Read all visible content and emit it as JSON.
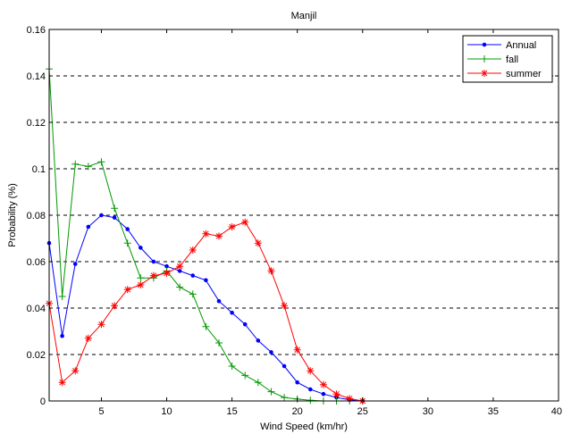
{
  "chart_data": {
    "type": "line",
    "title": "Manjil",
    "xlabel": "Wind Speed (km/hr)",
    "ylabel": "Probability (%)",
    "xlim": [
      1,
      40
    ],
    "ylim": [
      0,
      0.16
    ],
    "xticks": [
      5,
      10,
      15,
      20,
      25,
      30,
      35,
      40
    ],
    "xtick_labels": [
      "5",
      "10",
      "15",
      "20",
      "25",
      "30",
      "35",
      "40"
    ],
    "yticks": [
      0,
      0.02,
      0.04,
      0.06,
      0.08,
      0.1,
      0.12,
      0.14,
      0.16
    ],
    "ytick_labels": [
      "0",
      "0.02",
      "0.04",
      "0.06",
      "0.08",
      "0.1",
      "0.12",
      "0.14",
      "0.16"
    ],
    "grid": "horizontal dashed",
    "legend_position": "top-right",
    "series": [
      {
        "name": "Annual",
        "color": "#0000ff",
        "marker": "dot",
        "x": [
          1,
          2,
          3,
          4,
          5,
          6,
          7,
          8,
          9,
          10,
          11,
          12,
          13,
          14,
          15,
          16,
          17,
          18,
          19,
          20,
          21,
          22,
          23,
          24,
          25
        ],
        "y": [
          0.068,
          0.028,
          0.059,
          0.075,
          0.08,
          0.079,
          0.074,
          0.066,
          0.06,
          0.058,
          0.056,
          0.054,
          0.052,
          0.043,
          0.038,
          0.033,
          0.026,
          0.021,
          0.015,
          0.008,
          0.005,
          0.003,
          0.0015,
          0.0005,
          0.0
        ]
      },
      {
        "name": "fall",
        "color": "#009900",
        "marker": "plus",
        "x": [
          1,
          2,
          3,
          4,
          5,
          6,
          7,
          8,
          9,
          10,
          11,
          12,
          13,
          14,
          15,
          16,
          17,
          18,
          19,
          20,
          21,
          22,
          23,
          24,
          25
        ],
        "y": [
          0.143,
          0.045,
          0.102,
          0.101,
          0.103,
          0.083,
          0.068,
          0.053,
          0.053,
          0.056,
          0.049,
          0.046,
          0.032,
          0.025,
          0.015,
          0.011,
          0.008,
          0.004,
          0.0015,
          0.0008,
          0.0003,
          0.0,
          0.0,
          0.0,
          0.0
        ]
      },
      {
        "name": "summer",
        "color": "#ff0000",
        "marker": "star",
        "x": [
          1,
          2,
          3,
          4,
          5,
          6,
          7,
          8,
          9,
          10,
          11,
          12,
          13,
          14,
          15,
          16,
          17,
          18,
          19,
          20,
          21,
          22,
          23,
          24,
          25
        ],
        "y": [
          0.042,
          0.008,
          0.013,
          0.027,
          0.033,
          0.041,
          0.048,
          0.05,
          0.054,
          0.055,
          0.058,
          0.065,
          0.072,
          0.071,
          0.075,
          0.077,
          0.068,
          0.056,
          0.041,
          0.022,
          0.013,
          0.007,
          0.003,
          0.001,
          0.0
        ]
      }
    ]
  }
}
